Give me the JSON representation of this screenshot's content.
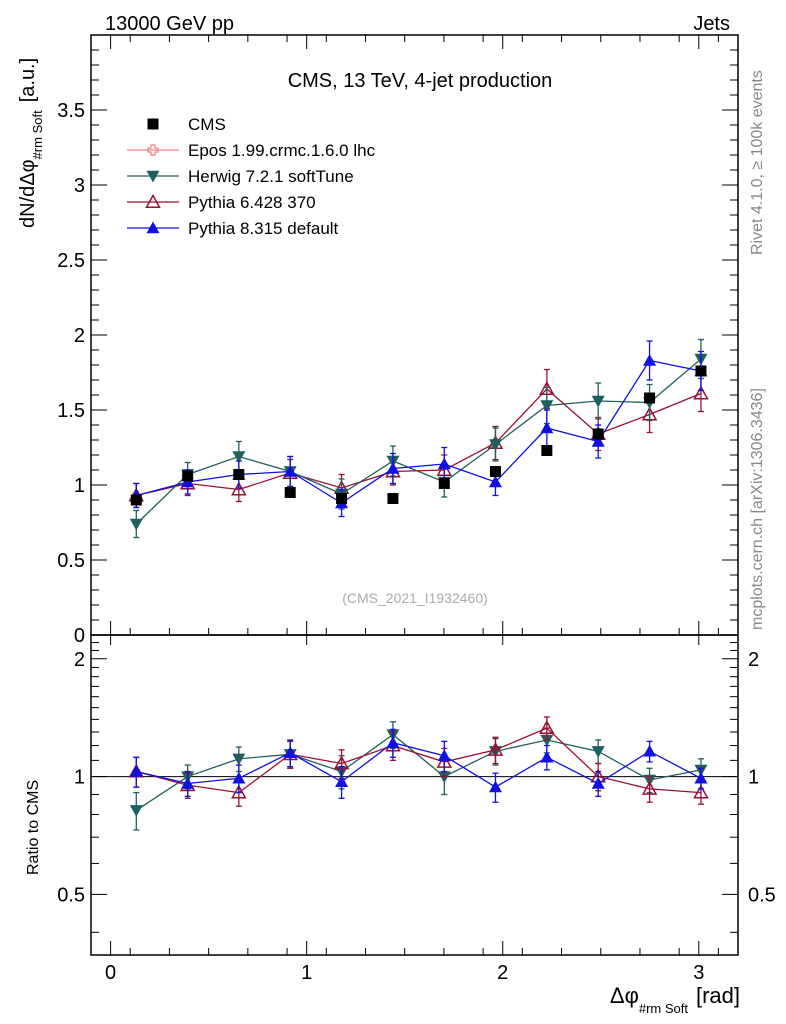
{
  "header": {
    "left": "13000 GeV pp",
    "right": "Jets"
  },
  "side_labels": {
    "top": "Rivet 4.1.0, ≥ 100k events",
    "bottom": "mcplots.cern.ch [arXiv:1306.3436]"
  },
  "colors": {
    "cms": "#000000",
    "epos": "#f08080",
    "herwig": "#1f5f5f",
    "pythia6": "#9b1030",
    "pythia8": "#1010e0"
  },
  "chart_data": {
    "type": "line",
    "title": "CMS, 13 TeV, 4-jet production",
    "analysis_id": "(CMS_2021_I1932460)",
    "xlabel": "Δφ",
    "xlabel_sub": "#rm Soft",
    "xlabel_unit": "[rad]",
    "ylabel": "dN/dΔφ",
    "ylabel_sub": "#rm Soft",
    "ylabel_unit": "[a.u.]",
    "ratio_ylabel": "Ratio to CMS",
    "xlim": [
      -0.1,
      3.2
    ],
    "ylim": [
      0,
      4.0
    ],
    "ratio_ylim": [
      0.35,
      2.3
    ],
    "x_ticks": [
      0,
      1,
      2,
      3
    ],
    "y_ticks": [
      0,
      0.5,
      1,
      1.5,
      2,
      2.5,
      3,
      3.5
    ],
    "y_tick_labels": [
      "0",
      "0.5",
      "1",
      "1.5",
      "2",
      "2.5",
      "3",
      "3.5"
    ],
    "ratio_ticks": [
      0.5,
      1,
      2
    ],
    "ratio_tick_labels": [
      "0.5",
      "1",
      "2"
    ],
    "x": [
      0.131,
      0.393,
      0.654,
      0.916,
      1.178,
      1.44,
      1.702,
      1.963,
      2.225,
      2.487,
      2.749,
      3.011
    ],
    "series": [
      {
        "key": "cms",
        "name": "CMS",
        "marker": "square",
        "values": [
          0.9,
          1.06,
          1.07,
          0.95,
          0.91,
          0.91,
          1.01,
          1.09,
          1.23,
          1.34,
          1.58,
          1.76
        ],
        "errors": [
          0.02,
          0.02,
          0.02,
          0.02,
          0.02,
          0.02,
          0.02,
          0.02,
          0.02,
          0.02,
          0.03,
          0.03
        ]
      },
      {
        "key": "epos",
        "name": "Epos 1.99.crmc.1.6.0 lhc",
        "marker": "open-cross",
        "values": null,
        "errors": null
      },
      {
        "key": "herwig",
        "name": "Herwig 7.2.1 softTune",
        "marker": "triangle-down",
        "values": [
          0.74,
          1.07,
          1.19,
          1.09,
          0.94,
          1.16,
          1.02,
          1.27,
          1.53,
          1.56,
          1.55,
          1.84
        ],
        "errors": [
          0.09,
          0.08,
          0.1,
          0.1,
          0.1,
          0.1,
          0.1,
          0.11,
          0.12,
          0.12,
          0.12,
          0.13
        ]
      },
      {
        "key": "pythia6",
        "name": "Pythia 6.428 370",
        "marker": "open-triangle-up",
        "values": [
          0.93,
          1.01,
          0.97,
          1.08,
          0.98,
          1.09,
          1.1,
          1.28,
          1.64,
          1.34,
          1.47,
          1.61
        ],
        "errors": [
          0.08,
          0.08,
          0.08,
          0.09,
          0.09,
          0.09,
          0.1,
          0.11,
          0.13,
          0.11,
          0.12,
          0.12
        ]
      },
      {
        "key": "pythia8",
        "name": "Pythia 8.315 default",
        "marker": "triangle-up",
        "values": [
          0.93,
          1.02,
          1.07,
          1.09,
          0.88,
          1.11,
          1.14,
          1.02,
          1.38,
          1.29,
          1.83,
          1.76
        ],
        "errors": [
          0.08,
          0.08,
          0.09,
          0.1,
          0.09,
          0.1,
          0.11,
          0.09,
          0.12,
          0.11,
          0.13,
          0.13
        ]
      }
    ],
    "ratios": [
      {
        "key": "herwig",
        "values": [
          0.82,
          1.0,
          1.11,
          1.14,
          1.03,
          1.28,
          1.0,
          1.16,
          1.24,
          1.16,
          0.98,
          1.04
        ],
        "errors": [
          0.09,
          0.07,
          0.08,
          0.09,
          0.1,
          0.1,
          0.1,
          0.09,
          0.09,
          0.08,
          0.07,
          0.07
        ]
      },
      {
        "key": "pythia6",
        "name_ratio": "",
        "values": [
          1.03,
          0.95,
          0.91,
          1.14,
          1.08,
          1.2,
          1.09,
          1.17,
          1.33,
          1.0,
          0.93,
          0.91
        ],
        "errors": [
          0.09,
          0.07,
          0.07,
          0.09,
          0.09,
          0.1,
          0.09,
          0.09,
          0.09,
          0.08,
          0.07,
          0.06
        ]
      },
      {
        "key": "pythia8",
        "values": [
          1.03,
          0.96,
          0.99,
          1.15,
          0.97,
          1.22,
          1.13,
          0.94,
          1.12,
          0.96,
          1.16,
          0.99
        ],
        "errors": [
          0.09,
          0.07,
          0.08,
          0.09,
          0.09,
          0.1,
          0.1,
          0.08,
          0.08,
          0.07,
          0.07,
          0.06
        ]
      }
    ]
  }
}
